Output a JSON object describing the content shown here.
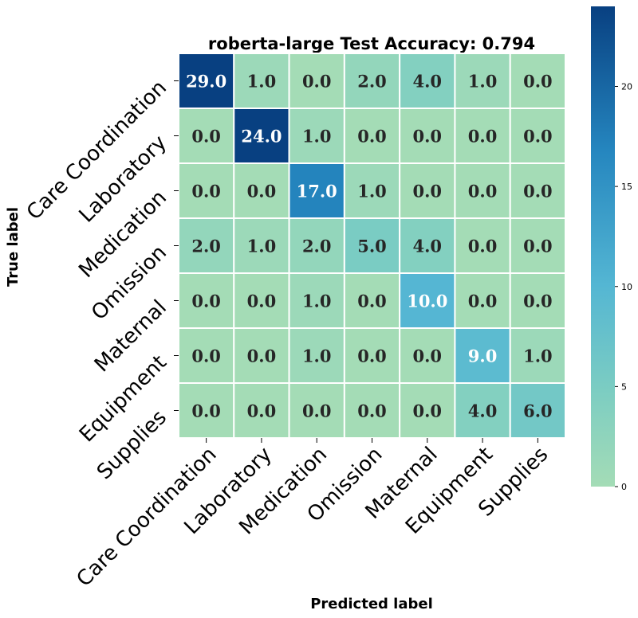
{
  "chart_data": {
    "type": "heatmap",
    "title": "roberta-large Test Accuracy: 0.794",
    "xlabel": "Predicted label",
    "ylabel": "True label",
    "x_categories": [
      "Care Coordination",
      "Laboratory",
      "Medication",
      "Omission",
      "Maternal",
      "Equipment",
      "Supplies"
    ],
    "y_categories": [
      "Care Coordination",
      "Laboratory",
      "Medication",
      "Omission",
      "Maternal",
      "Equipment",
      "Supplies"
    ],
    "values": [
      [
        29.0,
        1.0,
        0.0,
        2.0,
        4.0,
        1.0,
        0.0
      ],
      [
        0.0,
        24.0,
        1.0,
        0.0,
        0.0,
        0.0,
        0.0
      ],
      [
        0.0,
        0.0,
        17.0,
        1.0,
        0.0,
        0.0,
        0.0
      ],
      [
        2.0,
        1.0,
        2.0,
        5.0,
        4.0,
        0.0,
        0.0
      ],
      [
        0.0,
        0.0,
        1.0,
        0.0,
        10.0,
        0.0,
        0.0
      ],
      [
        0.0,
        0.0,
        1.0,
        0.0,
        0.0,
        9.0,
        1.0
      ],
      [
        0.0,
        0.0,
        0.0,
        0.0,
        0.0,
        4.0,
        6.0
      ]
    ],
    "value_format": "one-decimal",
    "colormap": "GnBu",
    "colorbar": {
      "range": [
        0,
        24
      ],
      "ticks": [
        0,
        5,
        10,
        15,
        20
      ],
      "placement": "right"
    },
    "grid": false
  }
}
